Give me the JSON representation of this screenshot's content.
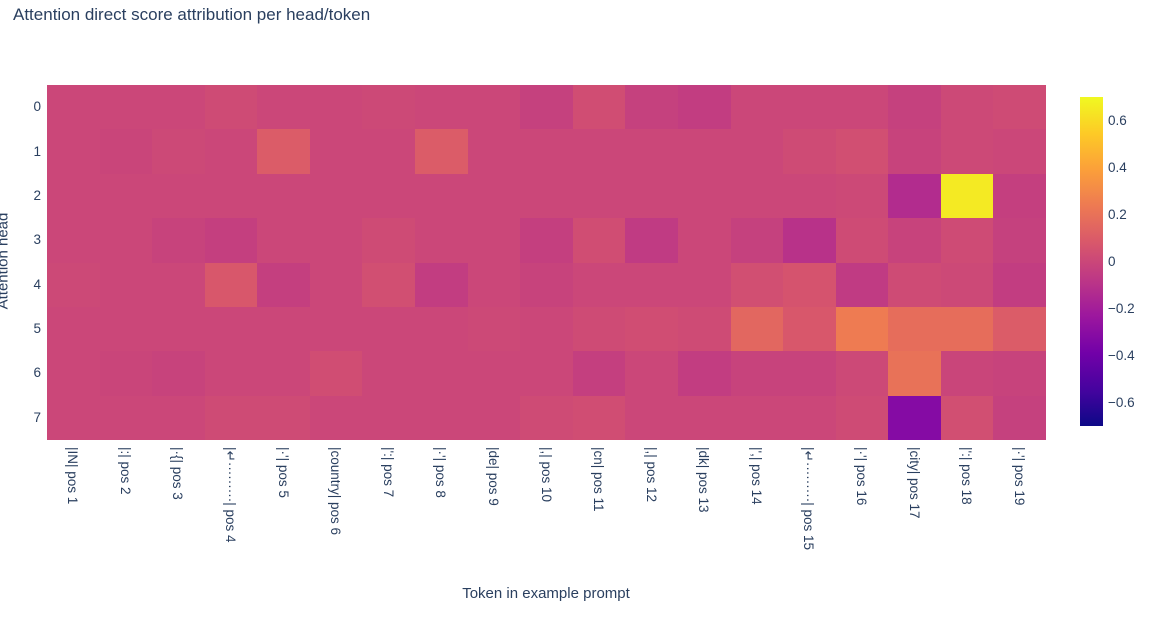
{
  "title": "Attention direct score attribution per head/token",
  "xaxis": {
    "title": "Token in example prompt"
  },
  "yaxis": {
    "title": "Attention head"
  },
  "chart_data": {
    "type": "heatmap",
    "title": "Attention direct score attribution per head/token",
    "xlabel": "Token in example prompt",
    "ylabel": "Attention head",
    "x": [
      "|IN| pos 1",
      "|:| pos 2",
      "|·{| pos 3",
      "|↵·········| pos 4",
      "|·'| pos 5",
      "|country| pos 6",
      "|':| pos 7",
      "|·'| pos 8",
      "|de| pos 9",
      "|,| pos 10",
      "|cn| pos 11",
      "|,| pos 12",
      "|dk| pos 13",
      "|',| pos 14",
      "|↵·········| pos 15",
      "|·'| pos 16",
      "|city| pos 17",
      "|':| pos 18",
      "|·'| pos 19"
    ],
    "y": [
      "0",
      "1",
      "2",
      "3",
      "4",
      "5",
      "6",
      "7"
    ],
    "z": [
      [
        0.0,
        0.0,
        0.0,
        0.02,
        0.0,
        0.0,
        0.01,
        0.0,
        0.0,
        -0.03,
        0.03,
        -0.03,
        -0.05,
        0.0,
        0.0,
        0.0,
        -0.03,
        0.01,
        0.02
      ],
      [
        0.0,
        -0.01,
        0.01,
        0.0,
        0.1,
        0.0,
        0.0,
        0.1,
        0.0,
        0.0,
        0.0,
        0.0,
        0.0,
        0.0,
        0.02,
        0.04,
        -0.02,
        0.01,
        0.0
      ],
      [
        0.0,
        0.0,
        0.0,
        0.0,
        0.0,
        0.0,
        0.0,
        0.0,
        0.0,
        0.0,
        0.0,
        0.0,
        0.0,
        0.0,
        0.0,
        0.01,
        -0.13,
        0.65,
        -0.04
      ],
      [
        0.0,
        0.0,
        -0.02,
        -0.04,
        0.0,
        0.0,
        0.02,
        0.0,
        0.0,
        -0.04,
        0.03,
        -0.06,
        0.0,
        -0.03,
        -0.1,
        0.02,
        -0.02,
        0.02,
        -0.03
      ],
      [
        0.01,
        0.0,
        0.0,
        0.08,
        -0.04,
        0.0,
        0.04,
        -0.05,
        0.0,
        -0.02,
        0.0,
        0.0,
        0.0,
        0.04,
        0.06,
        -0.06,
        0.02,
        0.01,
        -0.05
      ],
      [
        0.0,
        0.0,
        0.0,
        0.0,
        0.0,
        0.0,
        0.0,
        0.0,
        0.01,
        0.0,
        0.02,
        0.03,
        0.02,
        0.15,
        0.08,
        0.24,
        0.18,
        0.18,
        0.1
      ],
      [
        0.0,
        -0.01,
        -0.02,
        0.0,
        0.0,
        0.03,
        0.0,
        0.0,
        0.0,
        0.0,
        -0.04,
        0.0,
        -0.05,
        -0.02,
        -0.02,
        0.01,
        0.2,
        -0.01,
        -0.02
      ],
      [
        0.0,
        0.0,
        0.0,
        0.02,
        0.02,
        0.0,
        0.0,
        0.0,
        0.0,
        0.02,
        0.03,
        0.0,
        0.0,
        0.0,
        0.0,
        0.02,
        -0.32,
        0.04,
        -0.03
      ]
    ],
    "zmin": -0.7,
    "zmax": 0.7,
    "colorscale": "Plasma",
    "colorscale_stops": [
      [
        0.0,
        "#0d0887"
      ],
      [
        0.1111,
        "#46039f"
      ],
      [
        0.2222,
        "#7201a8"
      ],
      [
        0.3333,
        "#9c179e"
      ],
      [
        0.4444,
        "#bd3786"
      ],
      [
        0.5556,
        "#d8576b"
      ],
      [
        0.6667,
        "#ed7953"
      ],
      [
        0.7778,
        "#fb9f3a"
      ],
      [
        0.8889,
        "#fdca26"
      ],
      [
        1.0,
        "#f0f921"
      ]
    ],
    "colorbar_ticks": [
      0.6,
      0.4,
      0.2,
      0,
      -0.2,
      -0.4,
      -0.6
    ],
    "legend_position": "right",
    "grid": false,
    "text_color": "#2a3f5f",
    "background_color": "#ffffff"
  }
}
